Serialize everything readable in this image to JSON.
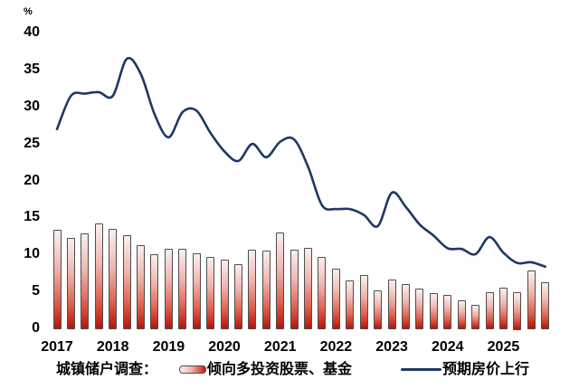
{
  "chart": {
    "unit_label": "%",
    "y_axis": {
      "ticks": [
        40,
        35,
        30,
        25,
        20,
        15,
        10,
        5,
        0
      ]
    },
    "x_axis": {
      "years": [
        "2017",
        "2018",
        "2019",
        "2020",
        "2021",
        "2022",
        "2023",
        "2024",
        "2025"
      ]
    },
    "legend": {
      "prefix": "城镇储户调查：",
      "bar_label": "倾向多投资股票、基金",
      "line_label": "预期房价上行"
    },
    "colors": {
      "line": "#1f3864",
      "bar_border": "#4d4d4d",
      "bar_gradient_top": "#f9f0ee",
      "bar_gradient_bottom": "#a81b0e",
      "text": "#000000"
    }
  },
  "chart_data": {
    "type": "bar+line",
    "title": "",
    "ylabel": "%",
    "ylim": [
      0,
      40
    ],
    "grid": false,
    "legend_position": "bottom",
    "categories": [
      "2017Q1",
      "2017Q2",
      "2017Q3",
      "2017Q4",
      "2018Q1",
      "2018Q2",
      "2018Q3",
      "2018Q4",
      "2019Q1",
      "2019Q2",
      "2019Q3",
      "2019Q4",
      "2020Q1",
      "2020Q2",
      "2020Q3",
      "2020Q4",
      "2021Q1",
      "2021Q2",
      "2021Q3",
      "2021Q4",
      "2022Q1",
      "2022Q2",
      "2022Q3",
      "2022Q4",
      "2023Q1",
      "2023Q2",
      "2023Q3",
      "2023Q4",
      "2024Q1",
      "2024Q2",
      "2024Q3",
      "2024Q4",
      "2025Q1",
      "2025Q2",
      "2025Q3",
      "2025Q4"
    ],
    "series": [
      {
        "name": "倾向多投资股票、基金",
        "type": "bar",
        "values": [
          13.4,
          12.3,
          12.9,
          14.3,
          13.5,
          12.6,
          11.3,
          10.1,
          10.8,
          10.8,
          10.2,
          9.7,
          9.3,
          8.7,
          10.7,
          10.6,
          13.0,
          10.7,
          10.9,
          9.7,
          8.1,
          6.5,
          7.3,
          5.2,
          6.7,
          6.0,
          5.4,
          4.8,
          4.6,
          3.9,
          3.2,
          4.9,
          5.6,
          5.0,
          7.9,
          6.3
        ]
      },
      {
        "name": "预期房价上行",
        "type": "line",
        "values": [
          27.0,
          31.5,
          31.8,
          32.0,
          31.5,
          36.5,
          34.5,
          29.0,
          25.9,
          29.3,
          29.5,
          26.5,
          24.0,
          22.7,
          25.0,
          23.2,
          25.3,
          25.6,
          21.9,
          16.7,
          16.2,
          16.2,
          15.4,
          13.9,
          18.4,
          16.5,
          14.1,
          12.6,
          10.9,
          10.8,
          10.1,
          12.4,
          10.3,
          8.9,
          9.0,
          8.4
        ]
      }
    ]
  }
}
